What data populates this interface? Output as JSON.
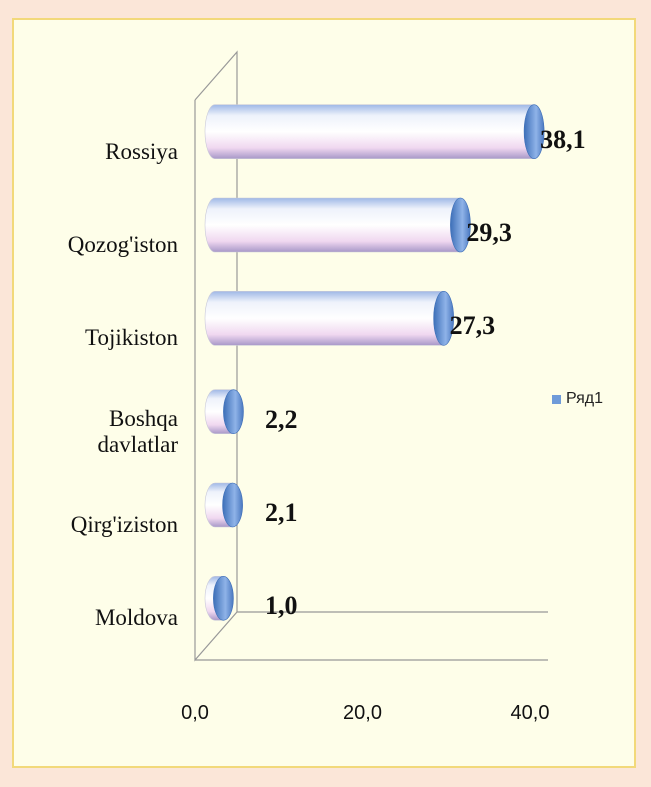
{
  "chart_data": {
    "type": "bar",
    "orientation": "horizontal",
    "style": "3d-cylinder",
    "categories": [
      "Rossiya",
      "Qozog'iston",
      "Tojikiston",
      "Boshqa davlatlar",
      "Qirg'iziston",
      "Moldova"
    ],
    "series": [
      {
        "name": "Ряд1",
        "color": "#6f9bd9",
        "values": [
          38.1,
          29.3,
          27.3,
          2.2,
          2.1,
          1.0
        ],
        "value_labels": [
          "38,1",
          "29,3",
          "27,3",
          "2,2",
          "2,1",
          "1,0"
        ]
      }
    ],
    "xlim": [
      0,
      40
    ],
    "xticks": [
      {
        "value": 0,
        "label": "0,0"
      },
      {
        "value": 20,
        "label": "20,0"
      },
      {
        "value": 40,
        "label": "40,0"
      }
    ],
    "legend": "right"
  }
}
